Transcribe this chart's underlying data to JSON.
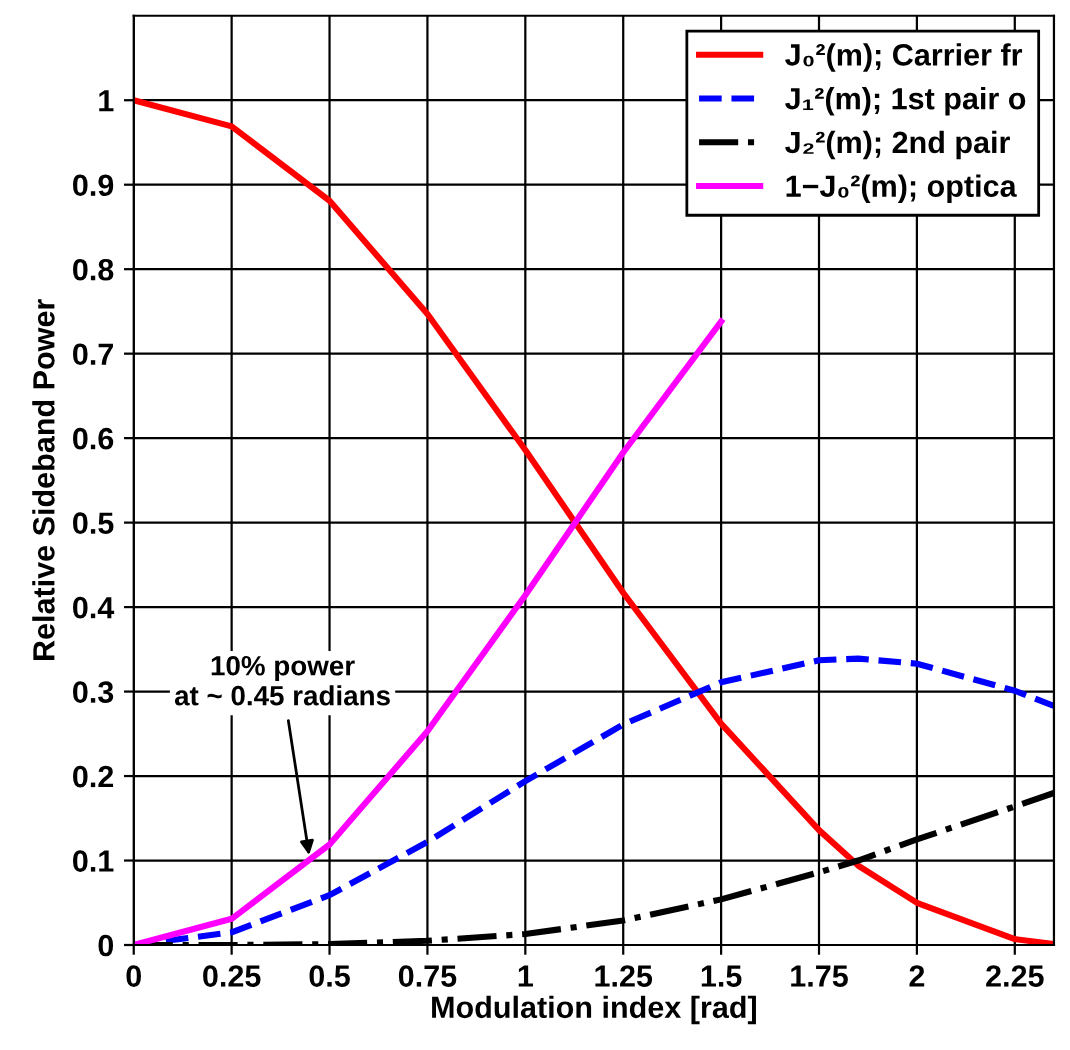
{
  "chart_data": {
    "type": "line",
    "xlabel": "Modulation index [rad]",
    "ylabel": "Relative Sideband Power",
    "x": [
      0,
      0.25,
      0.5,
      0.75,
      1,
      1.25,
      1.5,
      1.75,
      1.85,
      2,
      2.25,
      2.35
    ],
    "series": [
      {
        "name": "J₀²(m); Carrier fr",
        "color": "#ff0000",
        "line_style": "solid",
        "values": [
          1,
          0.969,
          0.881,
          0.747,
          0.586,
          0.417,
          0.262,
          0.136,
          0.094,
          0.05,
          0.007,
          0.001
        ]
      },
      {
        "name": "J₁²(m); 1st pair o",
        "color": "#0000ff",
        "line_style": "dashed",
        "values": [
          0,
          0.015,
          0.059,
          0.122,
          0.194,
          0.261,
          0.311,
          0.337,
          0.339,
          0.333,
          0.301,
          0.283
        ]
      },
      {
        "name": "J₂²(m); 2nd pair",
        "color": "#000000",
        "line_style": "dashdot",
        "values": [
          0,
          0,
          0.001,
          0.005,
          0.013,
          0.029,
          0.054,
          0.086,
          0.1,
          0.125,
          0.164,
          0.18
        ]
      },
      {
        "name": "1−J₀²(m); optica",
        "color": "#ff00ff",
        "line_style": "solid",
        "values": [
          0,
          0.031,
          0.119,
          0.253,
          0.414,
          0.583,
          0.738,
          null,
          null,
          null,
          null,
          null
        ]
      }
    ],
    "xlim": [
      0,
      2.35
    ],
    "ylim": [
      0,
      1.1
    ],
    "xticks": [
      0,
      0.25,
      0.5,
      0.75,
      1,
      1.25,
      1.5,
      1.75,
      2,
      2.25
    ],
    "yticks": [
      0,
      0.1,
      0.2,
      0.3,
      0.4,
      0.5,
      0.6,
      0.7,
      0.8,
      0.9,
      1
    ],
    "grid": true,
    "legend": "top right",
    "annotations": [
      {
        "text": "10% power\nat ~ 0.45 radians",
        "x": 0.45,
        "y": 0.1
      }
    ]
  }
}
